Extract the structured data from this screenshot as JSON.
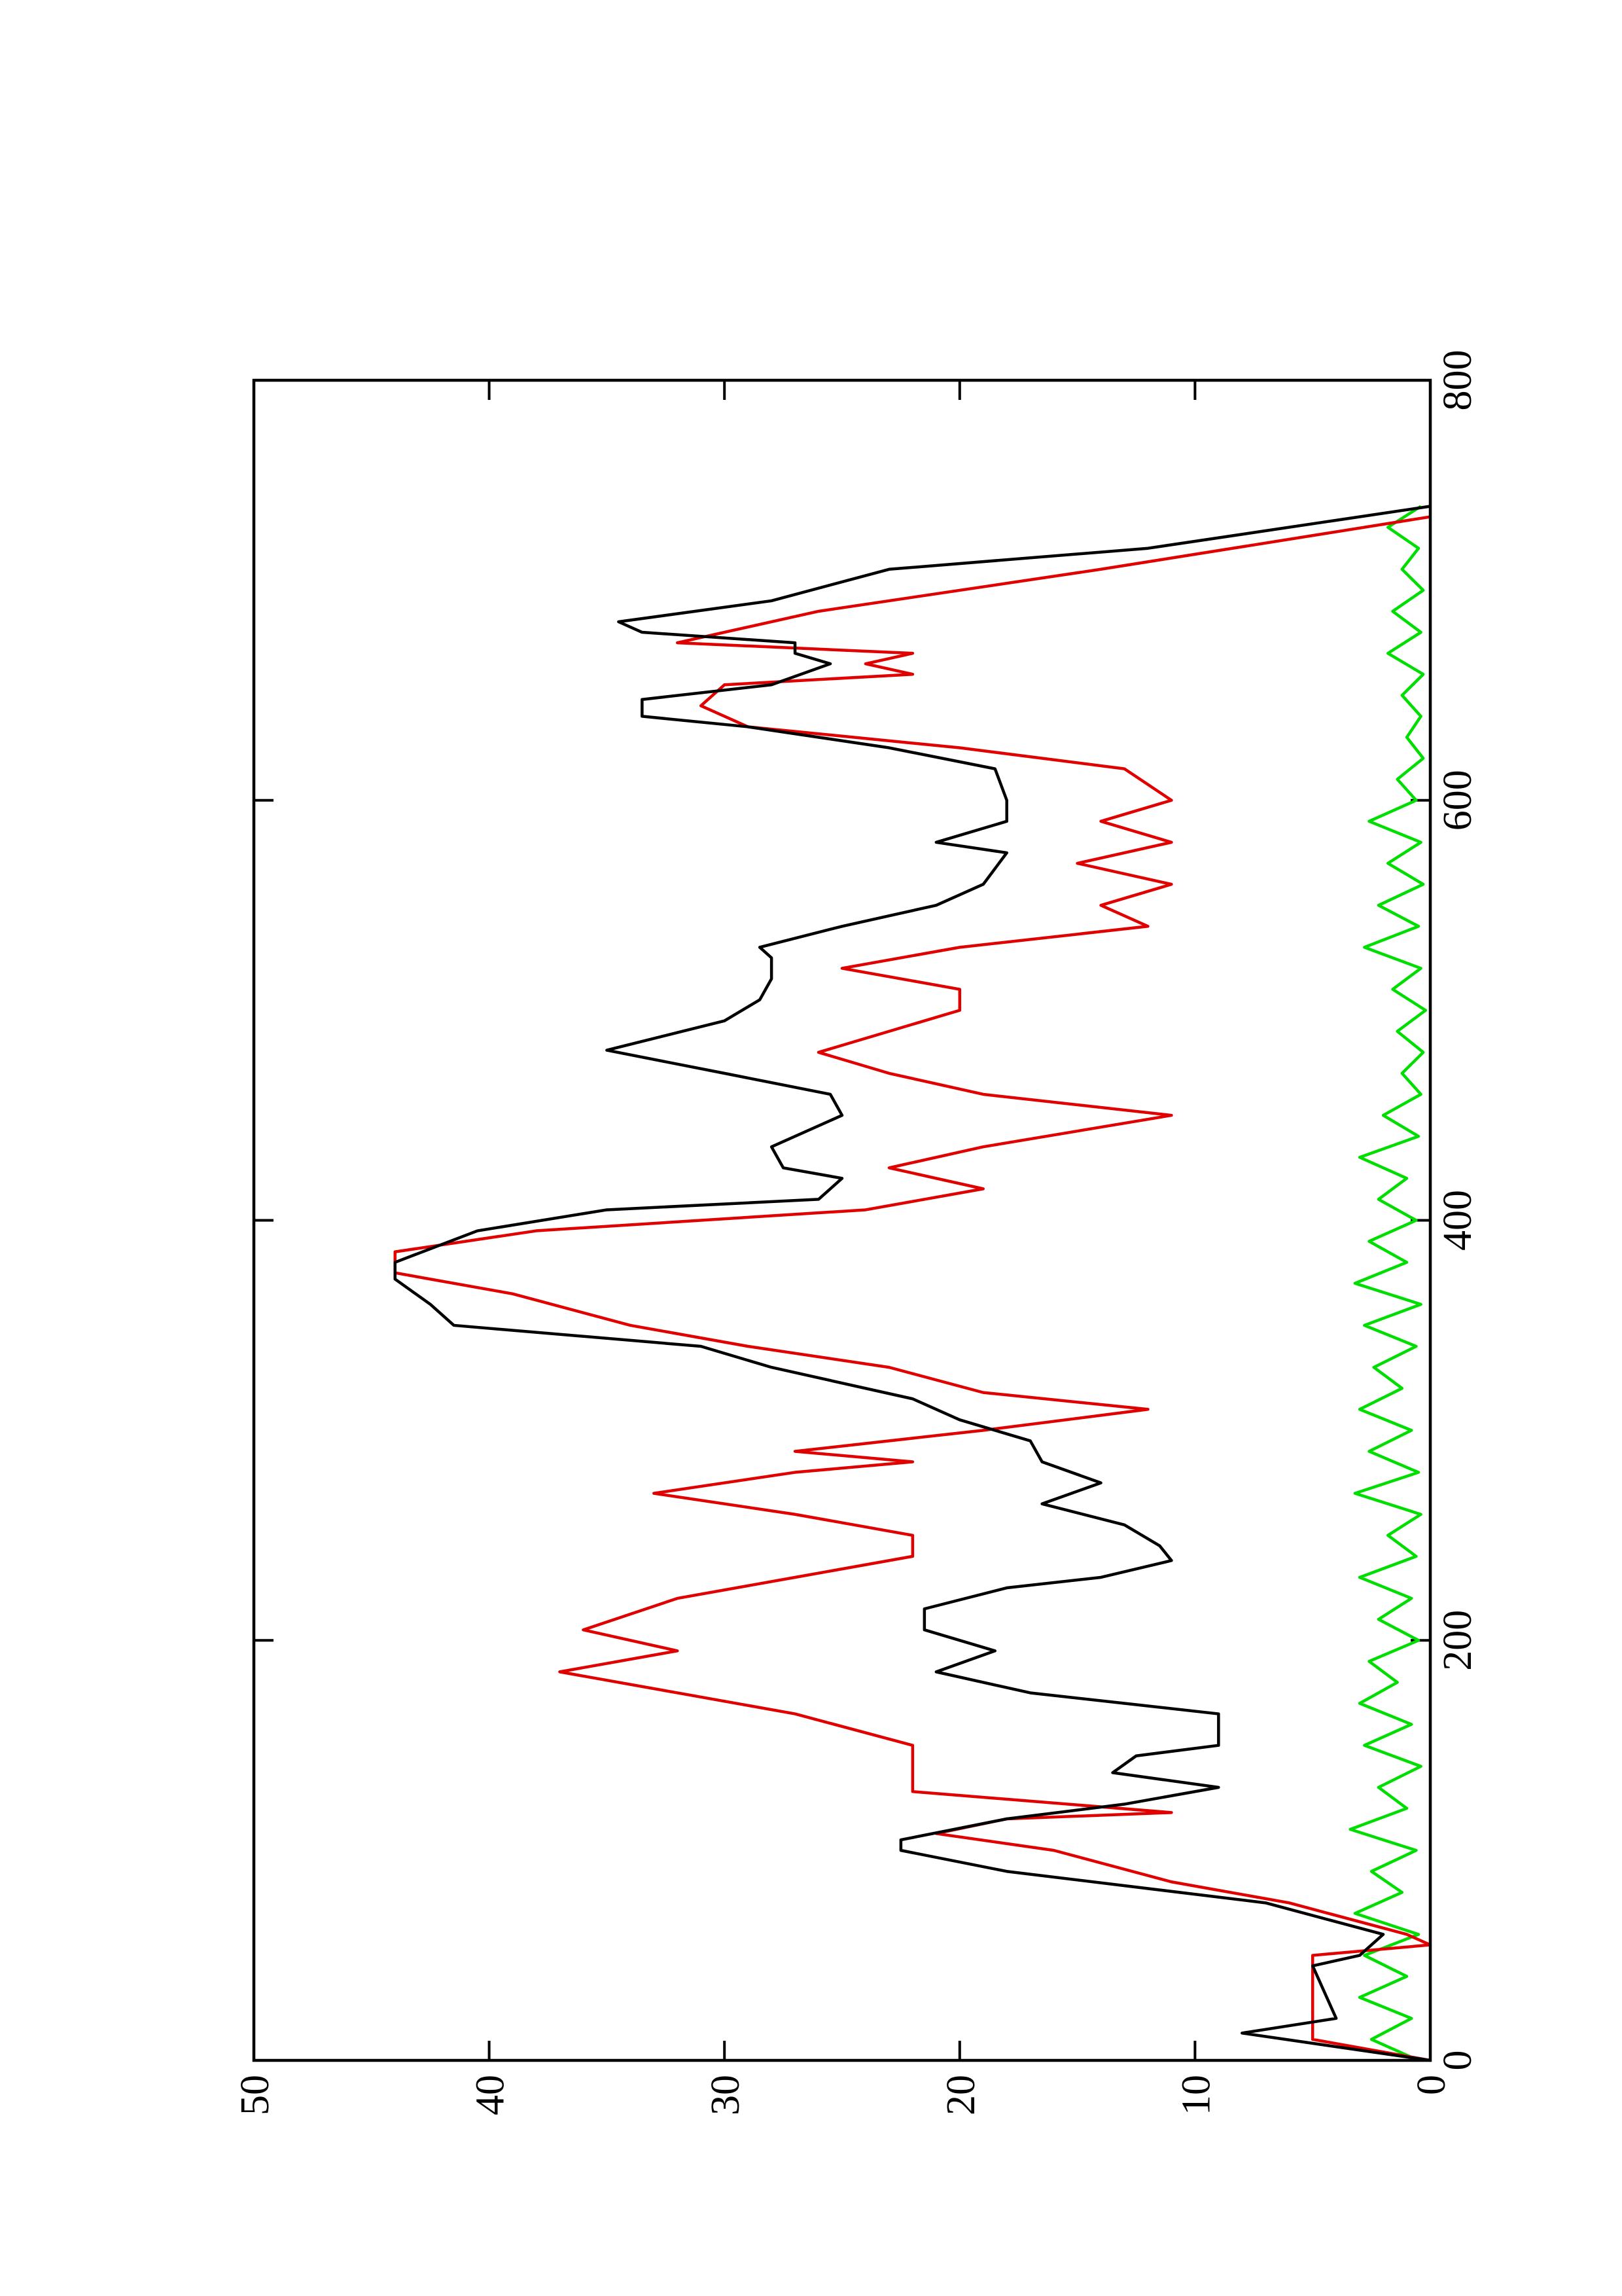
{
  "chart_data": {
    "type": "line",
    "xlim": [
      0,
      800
    ],
    "xticks": [
      0,
      200,
      400,
      600,
      800
    ],
    "ylim": [
      0,
      50
    ],
    "yticks": [
      0,
      10,
      20,
      30,
      40,
      50
    ],
    "series": [
      {
        "color": "#000000",
        "x": [
          0,
          13,
          20,
          45,
          50,
          60,
          75,
          90,
          100,
          105,
          115,
          122,
          130,
          137,
          145,
          150,
          165,
          170,
          175,
          185,
          195,
          205,
          215,
          225,
          230,
          238,
          245,
          255,
          265,
          275,
          285,
          295,
          305,
          315,
          330,
          340,
          350,
          360,
          372,
          380,
          395,
          405,
          410,
          420,
          425,
          435,
          450,
          460,
          470,
          481,
          495,
          505,
          515,
          525,
          530,
          540,
          550,
          560,
          575,
          580,
          590,
          600,
          615,
          625,
          635,
          640,
          648,
          655,
          665,
          670,
          675,
          680,
          685,
          695,
          710,
          720,
          740
        ],
        "values": [
          0,
          8,
          4,
          5,
          3,
          2,
          7,
          18,
          22.5,
          22.5,
          18,
          13,
          9,
          13.5,
          12.5,
          9,
          9,
          13,
          17,
          21,
          18.5,
          21.5,
          21.5,
          18,
          14,
          11,
          11.5,
          13,
          16.5,
          14,
          16.5,
          17,
          20,
          22,
          28,
          31,
          41.5,
          42.5,
          44,
          44,
          40.5,
          35,
          26,
          25,
          27.5,
          28,
          25,
          25.5,
          30,
          35,
          30,
          28.5,
          28,
          28,
          28.5,
          25,
          21,
          19,
          18,
          21,
          18,
          18,
          18.5,
          23,
          29,
          33.5,
          33.5,
          28,
          25.5,
          27,
          27,
          33.5,
          34.5,
          28,
          23,
          12,
          0
        ]
      },
      {
        "color": "#e00000",
        "x": [
          0,
          10,
          50,
          55,
          60,
          75,
          85,
          100,
          108,
          115,
          118,
          128,
          150,
          165,
          175,
          185,
          195,
          205,
          220,
          230,
          240,
          250,
          260,
          270,
          280,
          285,
          290,
          300,
          310,
          318,
          330,
          340,
          350,
          365,
          375,
          385,
          395,
          405,
          415,
          425,
          435,
          450,
          460,
          470,
          480,
          500,
          510,
          520,
          530,
          540,
          550,
          560,
          570,
          580,
          590,
          600,
          615,
          625,
          635,
          645,
          655,
          660,
          665,
          670,
          675,
          690,
          710,
          735
        ],
        "values": [
          0,
          5,
          5,
          0,
          1,
          6,
          11,
          16,
          21,
          18,
          11,
          22,
          22,
          27,
          32,
          37,
          32,
          36,
          32,
          27,
          22,
          22,
          27,
          33,
          27,
          22,
          27,
          19,
          12,
          19,
          23,
          29,
          34,
          39,
          44,
          44,
          38,
          24,
          19,
          23,
          19,
          11,
          19,
          23,
          26,
          20,
          20,
          25,
          20,
          12,
          14,
          11,
          15,
          11,
          14,
          11,
          13,
          20,
          29,
          31,
          30,
          22,
          24,
          22,
          32,
          26,
          14,
          0
        ]
      },
      {
        "color": "#00dd00",
        "x": [
          0,
          10,
          20,
          30,
          40,
          50,
          60,
          70,
          80,
          90,
          100,
          110,
          120,
          130,
          140,
          150,
          160,
          170,
          180,
          190,
          200,
          210,
          220,
          230,
          240,
          250,
          260,
          270,
          280,
          290,
          300,
          310,
          320,
          330,
          340,
          350,
          360,
          370,
          380,
          390,
          400,
          410,
          420,
          430,
          440,
          450,
          460,
          470,
          480,
          490,
          500,
          510,
          520,
          530,
          540,
          550,
          560,
          570,
          580,
          590,
          600,
          610,
          620,
          630,
          640,
          650,
          660,
          670,
          680,
          690,
          700,
          710,
          720,
          730,
          740
        ],
        "values": [
          0.5,
          2.5,
          0.8,
          3,
          1,
          2.8,
          0.5,
          3.2,
          1.2,
          2.5,
          0.6,
          3.4,
          1,
          2.2,
          0.4,
          2.8,
          0.8,
          3,
          1.4,
          2.6,
          0.5,
          2.2,
          0.8,
          3,
          0.6,
          1.8,
          0.4,
          3.2,
          0.5,
          2.6,
          0.8,
          3,
          1.2,
          2.4,
          0.6,
          2.8,
          0.4,
          3.2,
          1,
          2.6,
          0.6,
          2.2,
          1,
          3,
          0.5,
          2,
          0.4,
          1.2,
          0.3,
          1.4,
          0.2,
          1.6,
          0.4,
          2.8,
          0.5,
          2.2,
          0.3,
          1.8,
          0.4,
          2.6,
          0.6,
          1.4,
          0.3,
          1,
          0.4,
          1.2,
          0.3,
          1.8,
          0.4,
          1.6,
          0.3,
          1.2,
          0.5,
          1.8,
          0.4
        ]
      }
    ]
  }
}
